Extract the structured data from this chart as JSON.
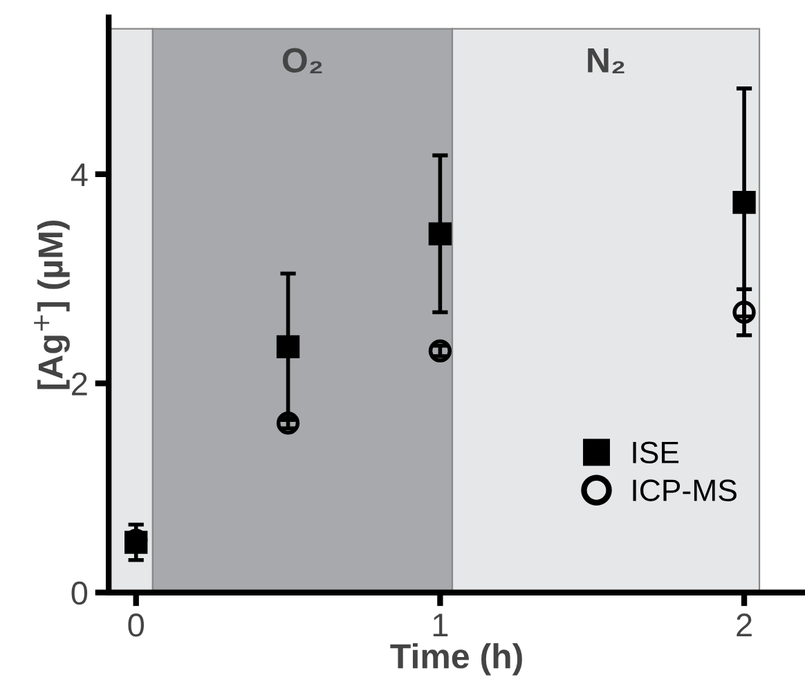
{
  "chart_data": {
    "type": "scatter",
    "xlabel": "Time (h)",
    "ylabel": "[Ag$^{+}$] (µM)",
    "xlim": [
      -0.09,
      2.2
    ],
    "ylim": [
      0,
      5.5
    ],
    "xticks": [
      0,
      1,
      2
    ],
    "yticks": [
      0,
      2,
      4
    ],
    "bands": [
      {
        "axis": "x",
        "from": -0.09,
        "to": 0.055,
        "color": "#e6e7e8"
      },
      {
        "axis": "x",
        "from": 0.055,
        "to": 1.04,
        "label": "O₂",
        "color": "#a7a9ac"
      },
      {
        "axis": "x",
        "from": 1.04,
        "to": 2.05,
        "label": "N₂",
        "color": "#e6e7e8"
      }
    ],
    "legend": "bottom right",
    "grid": false,
    "series": [
      {
        "name": "ISE",
        "color": "#000000",
        "marker": "square",
        "x": [
          0,
          0.5,
          1,
          2
        ],
        "values": [
          0.48,
          2.35,
          3.43,
          3.73
        ],
        "errors": [
          0.17,
          0.7,
          0.75,
          1.09
        ]
      },
      {
        "name": "ICP-MS",
        "color": "#000000",
        "marker": "circle",
        "x": [
          0,
          0.5,
          1,
          2
        ],
        "values": [
          0.5,
          1.62,
          2.31,
          2.68
        ],
        "errors": [
          0.05,
          0.05,
          0.05,
          0.22
        ]
      }
    ]
  }
}
